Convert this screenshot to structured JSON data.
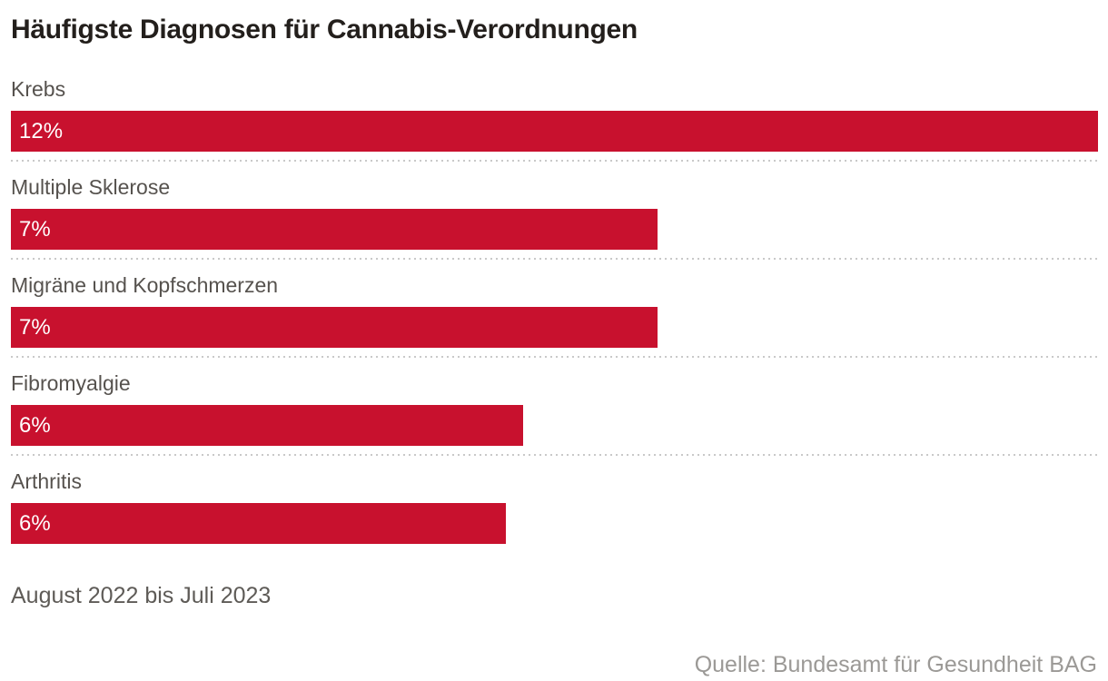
{
  "colors": {
    "bar": "#c8112e",
    "title": "#231f1c",
    "label": "#56524e",
    "period": "#5e5b57",
    "source": "#9b9996",
    "separator": "#c9c9c9",
    "value_text": "#ffffff"
  },
  "chart_data": {
    "type": "bar",
    "orientation": "horizontal",
    "title": "Häufigste Diagnosen für Cannabis-Verordnungen",
    "note": "August 2022 bis Juli 2023",
    "source": "Quelle: Bundesamt für Gesundheit BAG",
    "unit": "%",
    "xlim": [
      0,
      12
    ],
    "grid": false,
    "legend": false,
    "value_labels_inside_bars": true,
    "categories": [
      "Krebs",
      "Multiple Sklerose",
      "Migräne und Kopfschmerzen",
      "Fibromyalgie",
      "Arthritis"
    ],
    "values": [
      12,
      7,
      7,
      6,
      6
    ],
    "value_labels": [
      "12%",
      "7%",
      "7%",
      "6%",
      "6%"
    ],
    "items": [
      {
        "label": "Krebs",
        "value": 12,
        "value_label": "12%",
        "bar_fraction": 1.0
      },
      {
        "label": "Multiple Sklerose",
        "value": 7,
        "value_label": "7%",
        "bar_fraction": 0.595
      },
      {
        "label": "Migräne und Kopfschmerzen",
        "value": 7,
        "value_label": "7%",
        "bar_fraction": 0.595
      },
      {
        "label": "Fibromyalgie",
        "value": 6,
        "value_label": "6%",
        "bar_fraction": 0.471
      },
      {
        "label": "Arthritis",
        "value": 6,
        "value_label": "6%",
        "bar_fraction": 0.455
      }
    ]
  }
}
